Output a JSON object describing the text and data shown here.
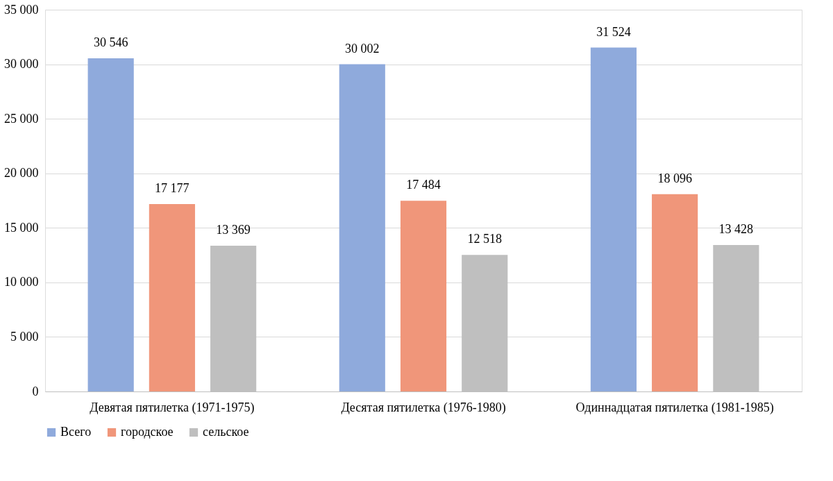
{
  "chart_data": {
    "type": "bar",
    "categories": [
      "Девятая пятилетка (1971-1975)",
      "Десятая пятилетка (1976-1980)",
      "Одиннадцатая пятилетка (1981-1985)"
    ],
    "series": [
      {
        "name": "Всего",
        "color": "#8faadc",
        "values": [
          30546,
          30002,
          31524
        ],
        "value_labels": [
          "30 546",
          "30 002",
          "31 524"
        ]
      },
      {
        "name": "городское",
        "color": "#f0967a",
        "values": [
          17177,
          17484,
          18096
        ],
        "value_labels": [
          "17 177",
          "17 484",
          "18 096"
        ]
      },
      {
        "name": "сельское",
        "color": "#bfbfbf",
        "values": [
          13369,
          12518,
          13428
        ],
        "value_labels": [
          "13 369",
          "12 518",
          "13 428"
        ]
      }
    ],
    "ylim": [
      0,
      35000
    ],
    "yticks": [
      0,
      {
        "value": 5000,
        "label": "5 000"
      },
      {
        "value": 10000,
        "label": "10 000"
      },
      {
        "value": 15000,
        "label": "15 000"
      },
      {
        "value": 20000,
        "label": "20 000"
      },
      {
        "value": 25000,
        "label": "25 000"
      },
      {
        "value": 30000,
        "label": "30 000"
      },
      {
        "value": 35000,
        "label": "35 000"
      }
    ],
    "grid": "y",
    "legend": "bottom"
  }
}
